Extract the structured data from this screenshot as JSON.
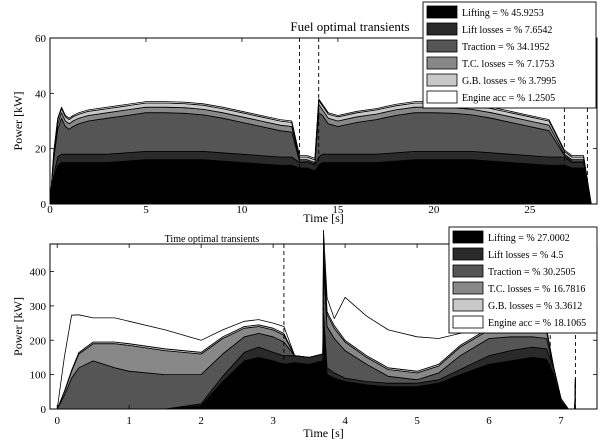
{
  "chart_data": [
    {
      "type": "area",
      "title": "Fuel optimal transients",
      "xlabel": "Time [s]",
      "ylabel": "Power [kW]",
      "xlim": [
        0,
        28.5
      ],
      "ylim": [
        0,
        60
      ],
      "xticks": [
        "0",
        "5",
        "10",
        "15",
        "20",
        "25"
      ],
      "yticks": [
        "0",
        "20",
        "40",
        "60"
      ],
      "grid": false,
      "legend_position": "top-right",
      "phase_markers": [
        13,
        14,
        26.8,
        28
      ],
      "x": [
        0,
        0.2,
        0.4,
        0.6,
        0.8,
        1,
        1.2,
        1.5,
        2,
        3,
        4,
        5,
        6,
        7,
        8,
        9,
        10,
        11,
        12,
        12.6,
        13,
        13.4,
        13.8,
        14,
        14.2,
        14.5,
        15,
        16,
        17,
        18,
        19,
        20,
        21,
        22,
        23,
        24,
        25,
        26,
        26.8,
        27.2,
        27.8,
        28.2
      ],
      "series": [
        {
          "name": "Lifting",
          "values": [
            0,
            9,
            14,
            15,
            15,
            15,
            15,
            15,
            15,
            15,
            15.5,
            16,
            16,
            16,
            16,
            15.5,
            15,
            14.5,
            14,
            14,
            13,
            13,
            12,
            14,
            15,
            15,
            15,
            15,
            15,
            15.5,
            16,
            16,
            16,
            16,
            15.5,
            15,
            14.5,
            14,
            14,
            13,
            13,
            0
          ]
        },
        {
          "name": "Lift losses",
          "values": [
            0,
            1.5,
            3,
            3,
            3,
            3,
            3,
            3,
            3,
            3,
            3,
            3,
            3,
            3,
            3,
            3,
            3,
            3,
            3,
            3,
            2,
            2,
            2,
            3,
            3,
            3,
            3,
            3,
            3,
            3,
            3,
            3,
            3,
            3,
            3,
            3,
            3,
            3,
            3,
            2,
            2,
            0
          ]
        },
        {
          "name": "Traction",
          "values": [
            0,
            6,
            10,
            13,
            10,
            9,
            10,
            11,
            12,
            13,
            13.5,
            14,
            14,
            13.8,
            13.2,
            12.5,
            11.5,
            10.5,
            9.5,
            9,
            0.5,
            0.5,
            0.5,
            16,
            14,
            11,
            10,
            11.5,
            12.5,
            13.5,
            14,
            14,
            13.8,
            13.2,
            12.5,
            11.5,
            10.5,
            9.5,
            0.5,
            0.5,
            0.5,
            0
          ]
        },
        {
          "name": "T.C. losses",
          "values": [
            0,
            1,
            2,
            2,
            2,
            2,
            2,
            2,
            2,
            2,
            2,
            2,
            2,
            2,
            2,
            2,
            2,
            2,
            2,
            2,
            0.5,
            0.5,
            0.5,
            3,
            2,
            2,
            2,
            2,
            2,
            2,
            2,
            2,
            2,
            2,
            2,
            2,
            2,
            2,
            0.5,
            0.5,
            0.5,
            0
          ]
        },
        {
          "name": "G.B. losses",
          "values": [
            0,
            1,
            1.5,
            1.5,
            1.5,
            1.5,
            1.5,
            1.5,
            1.5,
            1.5,
            1.5,
            1.5,
            1.5,
            1.5,
            1.5,
            1.5,
            1.5,
            1.5,
            1.5,
            1.5,
            1,
            1,
            1,
            1.5,
            1.5,
            1.5,
            1.5,
            1.5,
            1.5,
            1.5,
            1.5,
            1.5,
            1.5,
            1.5,
            1.5,
            1.5,
            1.5,
            1.5,
            1,
            1,
            1,
            0
          ]
        },
        {
          "name": "Engine acc",
          "values": [
            0,
            0.5,
            0.5,
            0.5,
            0.5,
            0.5,
            0.5,
            0.5,
            0.5,
            0.5,
            0.5,
            0.5,
            0.5,
            0.5,
            0.5,
            0.5,
            0.5,
            0.5,
            0.5,
            0.5,
            0.5,
            0.5,
            0.5,
            0.5,
            0.5,
            0.5,
            0.5,
            0.5,
            0.5,
            0.5,
            0.5,
            0.5,
            0.5,
            0.5,
            0.5,
            0.5,
            0.5,
            0.5,
            0.5,
            0.5,
            0.5,
            0
          ]
        }
      ],
      "legend": [
        {
          "name": "Lifting",
          "text": "Lifting",
          "pct": "= % 45.9253",
          "color": "#000000"
        },
        {
          "name": "Lift losses",
          "text": "Lift losses",
          "pct": "= % 7.6542",
          "color": "#2a2a2a"
        },
        {
          "name": "Traction",
          "text": "Traction",
          "pct": "= % 34.1952",
          "color": "#555555"
        },
        {
          "name": "T.C. losses",
          "text": "T.C. losses",
          "pct": "= % 7.1753",
          "color": "#888888"
        },
        {
          "name": "G.B. losses",
          "text": "G.B. losses",
          "pct": "= % 3.7995",
          "color": "#c8c8c8"
        },
        {
          "name": "Engine acc",
          "text": "Engine acc",
          "pct": "= % 1.2505",
          "color": "#ffffff"
        }
      ]
    },
    {
      "type": "area",
      "title": "Time optimal transients",
      "xlabel": "Time [s]",
      "ylabel": "Power [kW]",
      "xlim": [
        -0.1,
        7.5
      ],
      "ylim": [
        0,
        480
      ],
      "xticks": [
        "0",
        "1",
        "2",
        "3",
        "4",
        "5",
        "6",
        "7"
      ],
      "yticks": [
        "0",
        "100",
        "200",
        "300",
        "400"
      ],
      "grid": false,
      "legend_position": "top-right",
      "phase_markers": [
        3.15,
        3.7,
        6.85,
        7.2
      ],
      "x": [
        0,
        0.1,
        0.2,
        0.3,
        0.5,
        0.8,
        1,
        1.5,
        2,
        2.3,
        2.6,
        2.8,
        3,
        3.15,
        3.3,
        3.5,
        3.69,
        3.7,
        3.75,
        3.85,
        4,
        4.3,
        4.6,
        5,
        5.3,
        5.6,
        6,
        6.3,
        6.6,
        6.8,
        6.9,
        7,
        7.1,
        7.19,
        7.2
      ],
      "series": [
        {
          "name": "Lifting",
          "values": [
            0,
            0,
            0,
            0,
            0,
            0,
            0,
            0,
            10,
            80,
            140,
            150,
            140,
            130,
            135,
            130,
            140,
            240,
            100,
            90,
            80,
            70,
            65,
            65,
            75,
            100,
            130,
            140,
            150,
            145,
            100,
            20,
            0,
            0,
            90
          ]
        },
        {
          "name": "Lift losses",
          "values": [
            0,
            0,
            0,
            0,
            0,
            0,
            0,
            0,
            5,
            15,
            25,
            30,
            25,
            25,
            20,
            20,
            20,
            40,
            20,
            15,
            10,
            10,
            10,
            10,
            10,
            15,
            25,
            30,
            30,
            30,
            20,
            10,
            0,
            0,
            0
          ]
        },
        {
          "name": "Traction",
          "values": [
            0,
            40,
            90,
            120,
            140,
            120,
            110,
            100,
            85,
            65,
            45,
            40,
            45,
            40,
            0,
            0,
            0,
            140,
            120,
            100,
            80,
            50,
            20,
            10,
            20,
            40,
            50,
            40,
            30,
            30,
            0,
            0,
            0,
            0,
            0
          ]
        },
        {
          "name": "T.C. losses",
          "values": [
            0,
            10,
            20,
            40,
            50,
            70,
            75,
            70,
            60,
            45,
            25,
            20,
            20,
            20,
            0,
            0,
            0,
            40,
            35,
            30,
            25,
            20,
            20,
            20,
            20,
            25,
            25,
            20,
            20,
            20,
            0,
            0,
            0,
            0,
            0
          ]
        },
        {
          "name": "G.B. losses",
          "values": [
            0,
            2,
            3,
            4,
            5,
            5,
            5,
            5,
            5,
            5,
            5,
            5,
            5,
            5,
            0,
            0,
            0,
            10,
            8,
            8,
            5,
            5,
            5,
            5,
            5,
            5,
            5,
            5,
            5,
            5,
            0,
            0,
            0,
            0,
            0
          ]
        },
        {
          "name": "Engine acc",
          "values": [
            0,
            100,
            160,
            110,
            70,
            70,
            65,
            55,
            35,
            20,
            15,
            15,
            15,
            20,
            0,
            0,
            0,
            50,
            40,
            20,
            125,
            115,
            110,
            100,
            75,
            35,
            15,
            10,
            5,
            5,
            0,
            0,
            0,
            0,
            0
          ]
        }
      ],
      "legend": [
        {
          "name": "Lifting",
          "text": "Lifting",
          "pct": "= % 27.0002",
          "color": "#000000"
        },
        {
          "name": "Lift losses",
          "text": "Lift losses",
          "pct": "= % 4.5",
          "color": "#2a2a2a"
        },
        {
          "name": "Traction",
          "text": "Traction",
          "pct": "= % 30.2505",
          "color": "#555555"
        },
        {
          "name": "T.C. losses",
          "text": "T.C. losses",
          "pct": "= % 16.7816",
          "color": "#888888"
        },
        {
          "name": "G.B. losses",
          "text": "G.B. losses",
          "pct": "= % 3.3612",
          "color": "#c8c8c8"
        },
        {
          "name": "Engine acc",
          "text": "Engine acc",
          "pct": "= % 18.1065",
          "color": "#ffffff"
        }
      ]
    }
  ]
}
